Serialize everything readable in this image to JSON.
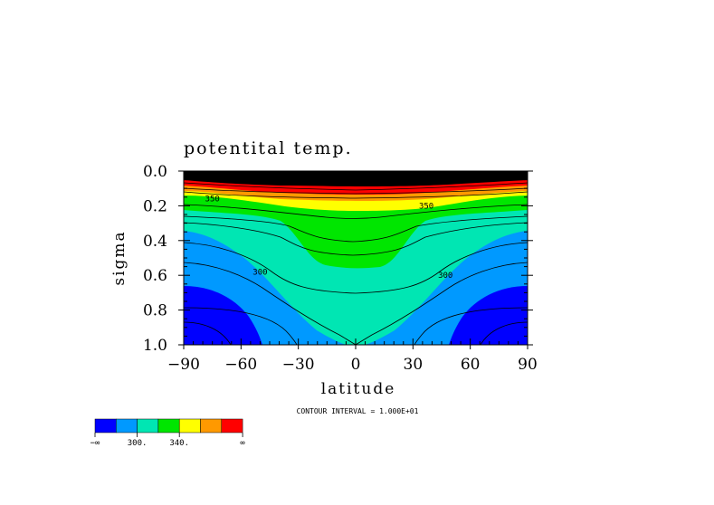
{
  "chart_data": {
    "type": "contour",
    "title": "potentital temp.",
    "xlabel": "latitude",
    "ylabel": "sigma",
    "xlim": [
      -90,
      90
    ],
    "ylim": [
      1.0,
      0.0
    ],
    "x_ticks": [
      -90,
      -60,
      -30,
      0,
      30,
      60,
      90
    ],
    "x_tick_labels": [
      "−90",
      "−60",
      "−30",
      "0",
      "30",
      "60",
      "90"
    ],
    "y_ticks": [
      0.0,
      0.2,
      0.4,
      0.6,
      0.8,
      1.0
    ],
    "y_tick_labels": [
      "0.0",
      "0.2",
      "0.4",
      "0.6",
      "0.8",
      "1.0"
    ],
    "contour_interval_text": "CONTOUR INTERVAL = 1.000E+01",
    "contour_labels": [
      {
        "text": "300",
        "lat": -50,
        "sigma": 0.58
      },
      {
        "text": "300",
        "lat": 47,
        "sigma": 0.6
      },
      {
        "text": "350",
        "lat": -75,
        "sigma": 0.16
      },
      {
        "text": "350",
        "lat": 37,
        "sigma": 0.2
      }
    ],
    "colorbar": {
      "colors": [
        "#0000ff",
        "#0099ff",
        "#00e6b3",
        "#00e600",
        "#ffff00",
        "#ff9900",
        "#ff0000"
      ],
      "labels": [
        "−∞",
        "300.",
        "340.",
        "∞"
      ],
      "label_positions": [
        0,
        2,
        4,
        7
      ]
    }
  }
}
